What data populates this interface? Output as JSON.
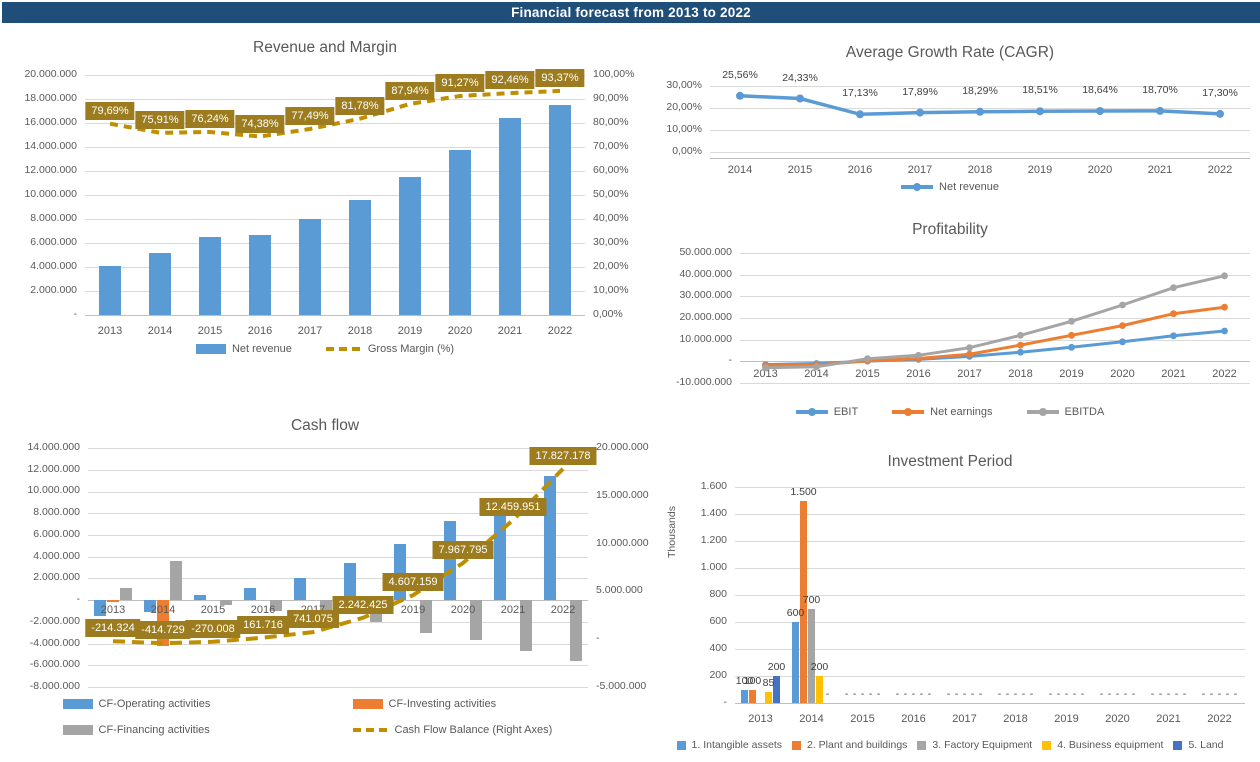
{
  "header": {
    "title": "Financial forecast from 2013 to 2022",
    "bg": "#1F4E79"
  },
  "colors": {
    "header_bg": "#1F4E79",
    "accent_blue": "#5B9BD5",
    "accent_orange": "#ED7D31",
    "accent_gray": "#A5A5A5",
    "accent_yellow": "#FFC000",
    "accent_navy": "#4472C4",
    "gold_line": "#BF8F00",
    "gold_label_box": "#9C7C1E",
    "gridline": "#D9D9D9",
    "text_gray": "#595959"
  },
  "chart_data": [
    {
      "id": "revenue_margin",
      "type": "bar",
      "title": "Revenue and Margin",
      "categories": [
        "2013",
        "2014",
        "2015",
        "2016",
        "2017",
        "2018",
        "2019",
        "2020",
        "2021",
        "2022"
      ],
      "y_left": {
        "min": 0,
        "max": 20000000,
        "ticks": [
          "20.000.000",
          "18.000.000",
          "16.000.000",
          "14.000.000",
          "12.000.000",
          "10.000.000",
          "8.000.000",
          "6.000.000",
          "4.000.000",
          "2.000.000",
          "-"
        ]
      },
      "y_right": {
        "min": 0,
        "max": 100,
        "ticks": [
          "100,00%",
          "90,00%",
          "80,00%",
          "70,00%",
          "60,00%",
          "50,00%",
          "40,00%",
          "30,00%",
          "20,00%",
          "10,00%",
          "0,00%"
        ]
      },
      "series": [
        {
          "name": "Net revenue",
          "type": "bar",
          "axis": "left",
          "color": "#5B9BD5",
          "values": [
            4050000,
            5150000,
            6500000,
            6700000,
            8000000,
            9600000,
            11500000,
            13750000,
            16400000,
            17500000
          ]
        },
        {
          "name": "Gross Margin (%)",
          "type": "line",
          "axis": "right",
          "color": "#BF8F00",
          "dashed": true,
          "width": 4,
          "dash": "8 6",
          "values": [
            79.69,
            75.91,
            76.24,
            74.38,
            77.49,
            81.78,
            87.94,
            91.27,
            92.46,
            93.37
          ],
          "labels": [
            "79,69%",
            "75,91%",
            "76,24%",
            "74,38%",
            "77,49%",
            "81,78%",
            "87,94%",
            "91,27%",
            "92,46%",
            "93,37%"
          ],
          "label_style": "box"
        }
      ],
      "legend": [
        {
          "label": "Net revenue",
          "swatch": "bar",
          "color": "#5B9BD5"
        },
        {
          "label": "Gross Margin (%)",
          "swatch": "dash",
          "color": "#BF8F00"
        }
      ]
    },
    {
      "id": "cagr",
      "type": "line",
      "title": "Average Growth Rate (CAGR)",
      "categories": [
        "2014",
        "2015",
        "2016",
        "2017",
        "2018",
        "2019",
        "2020",
        "2021",
        "2022"
      ],
      "y_left": {
        "min": 0,
        "max": 30,
        "ticks": [
          "30,00%",
          "20,00%",
          "10,00%",
          "0,00%"
        ]
      },
      "series": [
        {
          "name": "Net revenue",
          "type": "line",
          "axis": "left",
          "color": "#5B9BD5",
          "width": 3.5,
          "markers": true,
          "marker_r": 4,
          "values": [
            25.56,
            24.33,
            17.13,
            17.89,
            18.29,
            18.51,
            18.64,
            18.7,
            17.3
          ],
          "labels": [
            "25,56%",
            "24,33%",
            "17,13%",
            "17,89%",
            "18,29%",
            "18,51%",
            "18,64%",
            "18,70%",
            "17,30%"
          ],
          "label_style": "plain"
        }
      ],
      "legend": [
        {
          "label": "Net revenue",
          "swatch": "line",
          "color": "#5B9BD5"
        }
      ]
    },
    {
      "id": "profitability",
      "type": "line",
      "title": "Profitability",
      "categories": [
        "2013",
        "2014",
        "2015",
        "2016",
        "2017",
        "2018",
        "2019",
        "2020",
        "2021",
        "2022"
      ],
      "y_left": {
        "min": -10000000,
        "max": 50000000,
        "ticks": [
          "50.000.000",
          "40.000.000",
          "30.000.000",
          "20.000.000",
          "10.000.000",
          "-",
          "-10.000.000"
        ]
      },
      "series": [
        {
          "name": "EBIT",
          "type": "line",
          "axis": "left",
          "color": "#5B9BD5",
          "width": 3,
          "markers": true,
          "marker_r": 3.4,
          "values": [
            -1500000,
            -1000000,
            100000,
            900000,
            2300000,
            4200000,
            6500000,
            9000000,
            11800000,
            14000000
          ]
        },
        {
          "name": "Net earnings",
          "type": "line",
          "axis": "left",
          "color": "#ED7D31",
          "width": 3,
          "markers": true,
          "marker_r": 3.4,
          "values": [
            -2000000,
            -1700000,
            200000,
            1300000,
            3300000,
            7500000,
            12000000,
            16500000,
            22000000,
            25000000
          ]
        },
        {
          "name": "EBITDA",
          "type": "line",
          "axis": "left",
          "color": "#A5A5A5",
          "width": 3,
          "markers": true,
          "marker_r": 3.4,
          "values": [
            -3000000,
            -2500000,
            1200000,
            2800000,
            6300000,
            12000000,
            18500000,
            26000000,
            34000000,
            39500000
          ]
        }
      ],
      "legend": [
        {
          "label": "EBIT",
          "swatch": "line",
          "color": "#5B9BD5"
        },
        {
          "label": "Net earnings",
          "swatch": "line",
          "color": "#ED7D31"
        },
        {
          "label": "EBITDA",
          "swatch": "line",
          "color": "#A5A5A5"
        }
      ]
    },
    {
      "id": "cashflow",
      "type": "bar",
      "title": "Cash flow",
      "categories": [
        "2013",
        "2014",
        "2015",
        "2016",
        "2017",
        "2018",
        "2019",
        "2020",
        "2021",
        "2022"
      ],
      "y_left": {
        "min": -8000000,
        "max": 14000000,
        "ticks": [
          "14.000.000",
          "12.000.000",
          "10.000.000",
          "8.000.000",
          "6.000.000",
          "4.000.000",
          "2.000.000",
          "-",
          "-2.000.000",
          "-4.000.000",
          "-6.000.000",
          "-8.000.000"
        ]
      },
      "y_right": {
        "min": -5000000,
        "max": 20000000,
        "ticks": [
          "20.000.000",
          "15.000.000",
          "10.000.000",
          "5.000.000",
          "-",
          "-5.000.000"
        ]
      },
      "series": [
        {
          "name": "CF-Operating activities",
          "type": "bar",
          "axis": "left",
          "color": "#5B9BD5",
          "values": [
            -1500000,
            -1100000,
            500000,
            1100000,
            2000000,
            3400000,
            5200000,
            7300000,
            9400000,
            11400000
          ]
        },
        {
          "name": "CF-Investing activities",
          "type": "bar",
          "axis": "left",
          "color": "#ED7D31",
          "values": [
            -150000,
            -4200000,
            0,
            0,
            0,
            0,
            0,
            0,
            0,
            0
          ]
        },
        {
          "name": "CF-Financing activities",
          "type": "bar",
          "axis": "left",
          "color": "#A5A5A5",
          "values": [
            1100000,
            3600000,
            -500000,
            -1000000,
            -1100000,
            -2000000,
            -3000000,
            -3700000,
            -4700000,
            -5600000
          ]
        },
        {
          "name": "Cash Flow Balance (Right Axes)",
          "type": "line",
          "axis": "right",
          "color": "#BF8F00",
          "dashed": true,
          "width": 4,
          "dash": "12 7",
          "values": [
            -214324,
            -414729,
            -270008,
            161716,
            741075,
            2242425,
            4607159,
            7967795,
            12459951,
            17827178
          ],
          "labels": [
            "-214.324",
            "-414.729",
            "-270.008",
            "161.716",
            "741.075",
            "2.242.425",
            "4.607.159",
            "7.967.795",
            "12.459.951",
            "17.827.178"
          ],
          "label_style": "box"
        }
      ],
      "legend_layout": "grid",
      "legend": [
        {
          "label": "CF-Operating activities",
          "swatch": "bar",
          "color": "#5B9BD5"
        },
        {
          "label": "CF-Investing activities",
          "swatch": "bar",
          "color": "#ED7D31"
        },
        {
          "label": "CF-Financing activities",
          "swatch": "bar",
          "color": "#A5A5A5"
        },
        {
          "label": "Cash Flow Balance (Right Axes)",
          "swatch": "dash",
          "color": "#BF8F00"
        }
      ]
    },
    {
      "id": "investment",
      "type": "bar",
      "title": "Investment Period",
      "y_axis_title": "Thousands",
      "categories": [
        "2013",
        "2014",
        "2015",
        "2016",
        "2017",
        "2018",
        "2019",
        "2020",
        "2021",
        "2022"
      ],
      "y_left": {
        "min": 0,
        "max": 1600,
        "ticks": [
          "1.600",
          "1.400",
          "1.200",
          "1.000",
          "800",
          "600",
          "400",
          "200",
          "-"
        ]
      },
      "series": [
        {
          "name": "1. Intangible assets",
          "type": "bar",
          "axis": "left",
          "color": "#5B9BD5",
          "values": [
            100,
            600,
            0,
            0,
            0,
            0,
            0,
            0,
            0,
            0
          ],
          "labels": [
            "100",
            "600",
            "-",
            "-",
            "-",
            "-",
            "-",
            "-",
            "-",
            "-"
          ],
          "label_style": "plain"
        },
        {
          "name": "2. Plant and buildings",
          "type": "bar",
          "axis": "left",
          "color": "#ED7D31",
          "values": [
            100,
            1500,
            0,
            0,
            0,
            0,
            0,
            0,
            0,
            0
          ],
          "labels": [
            "100",
            "1.500",
            "-",
            "-",
            "-",
            "-",
            "-",
            "-",
            "-",
            "-"
          ],
          "label_style": "plain"
        },
        {
          "name": "3. Factory Equipment",
          "type": "bar",
          "axis": "left",
          "color": "#A5A5A5",
          "values": [
            0,
            700,
            0,
            0,
            0,
            0,
            0,
            0,
            0,
            0
          ],
          "labels": [
            null,
            "700",
            "-",
            "-",
            "-",
            "-",
            "-",
            "-",
            "-",
            "-"
          ],
          "label_style": "plain"
        },
        {
          "name": "4. Business equipment",
          "type": "bar",
          "axis": "left",
          "color": "#FFC000",
          "values": [
            85,
            200,
            0,
            0,
            0,
            0,
            0,
            0,
            0,
            0
          ],
          "labels": [
            "85",
            "200",
            "-",
            "-",
            "-",
            "-",
            "-",
            "-",
            "-",
            "-"
          ],
          "label_style": "plain"
        },
        {
          "name": "5. Land",
          "type": "bar",
          "axis": "left",
          "color": "#4472C4",
          "values": [
            200,
            0,
            0,
            0,
            0,
            0,
            0,
            0,
            0,
            0
          ],
          "labels": [
            "200",
            "-",
            "-",
            "-",
            "-",
            "-",
            "-",
            "-",
            "-",
            "-"
          ],
          "label_style": "plain"
        }
      ],
      "legend": [
        {
          "label": "1. Intangible assets",
          "swatch": "square",
          "color": "#5B9BD5"
        },
        {
          "label": "2. Plant and buildings",
          "swatch": "square",
          "color": "#ED7D31"
        },
        {
          "label": "3. Factory Equipment",
          "swatch": "square",
          "color": "#A5A5A5"
        },
        {
          "label": "4. Business equipment",
          "swatch": "square",
          "color": "#FFC000"
        },
        {
          "label": "5. Land",
          "swatch": "square",
          "color": "#4472C4"
        }
      ]
    }
  ]
}
